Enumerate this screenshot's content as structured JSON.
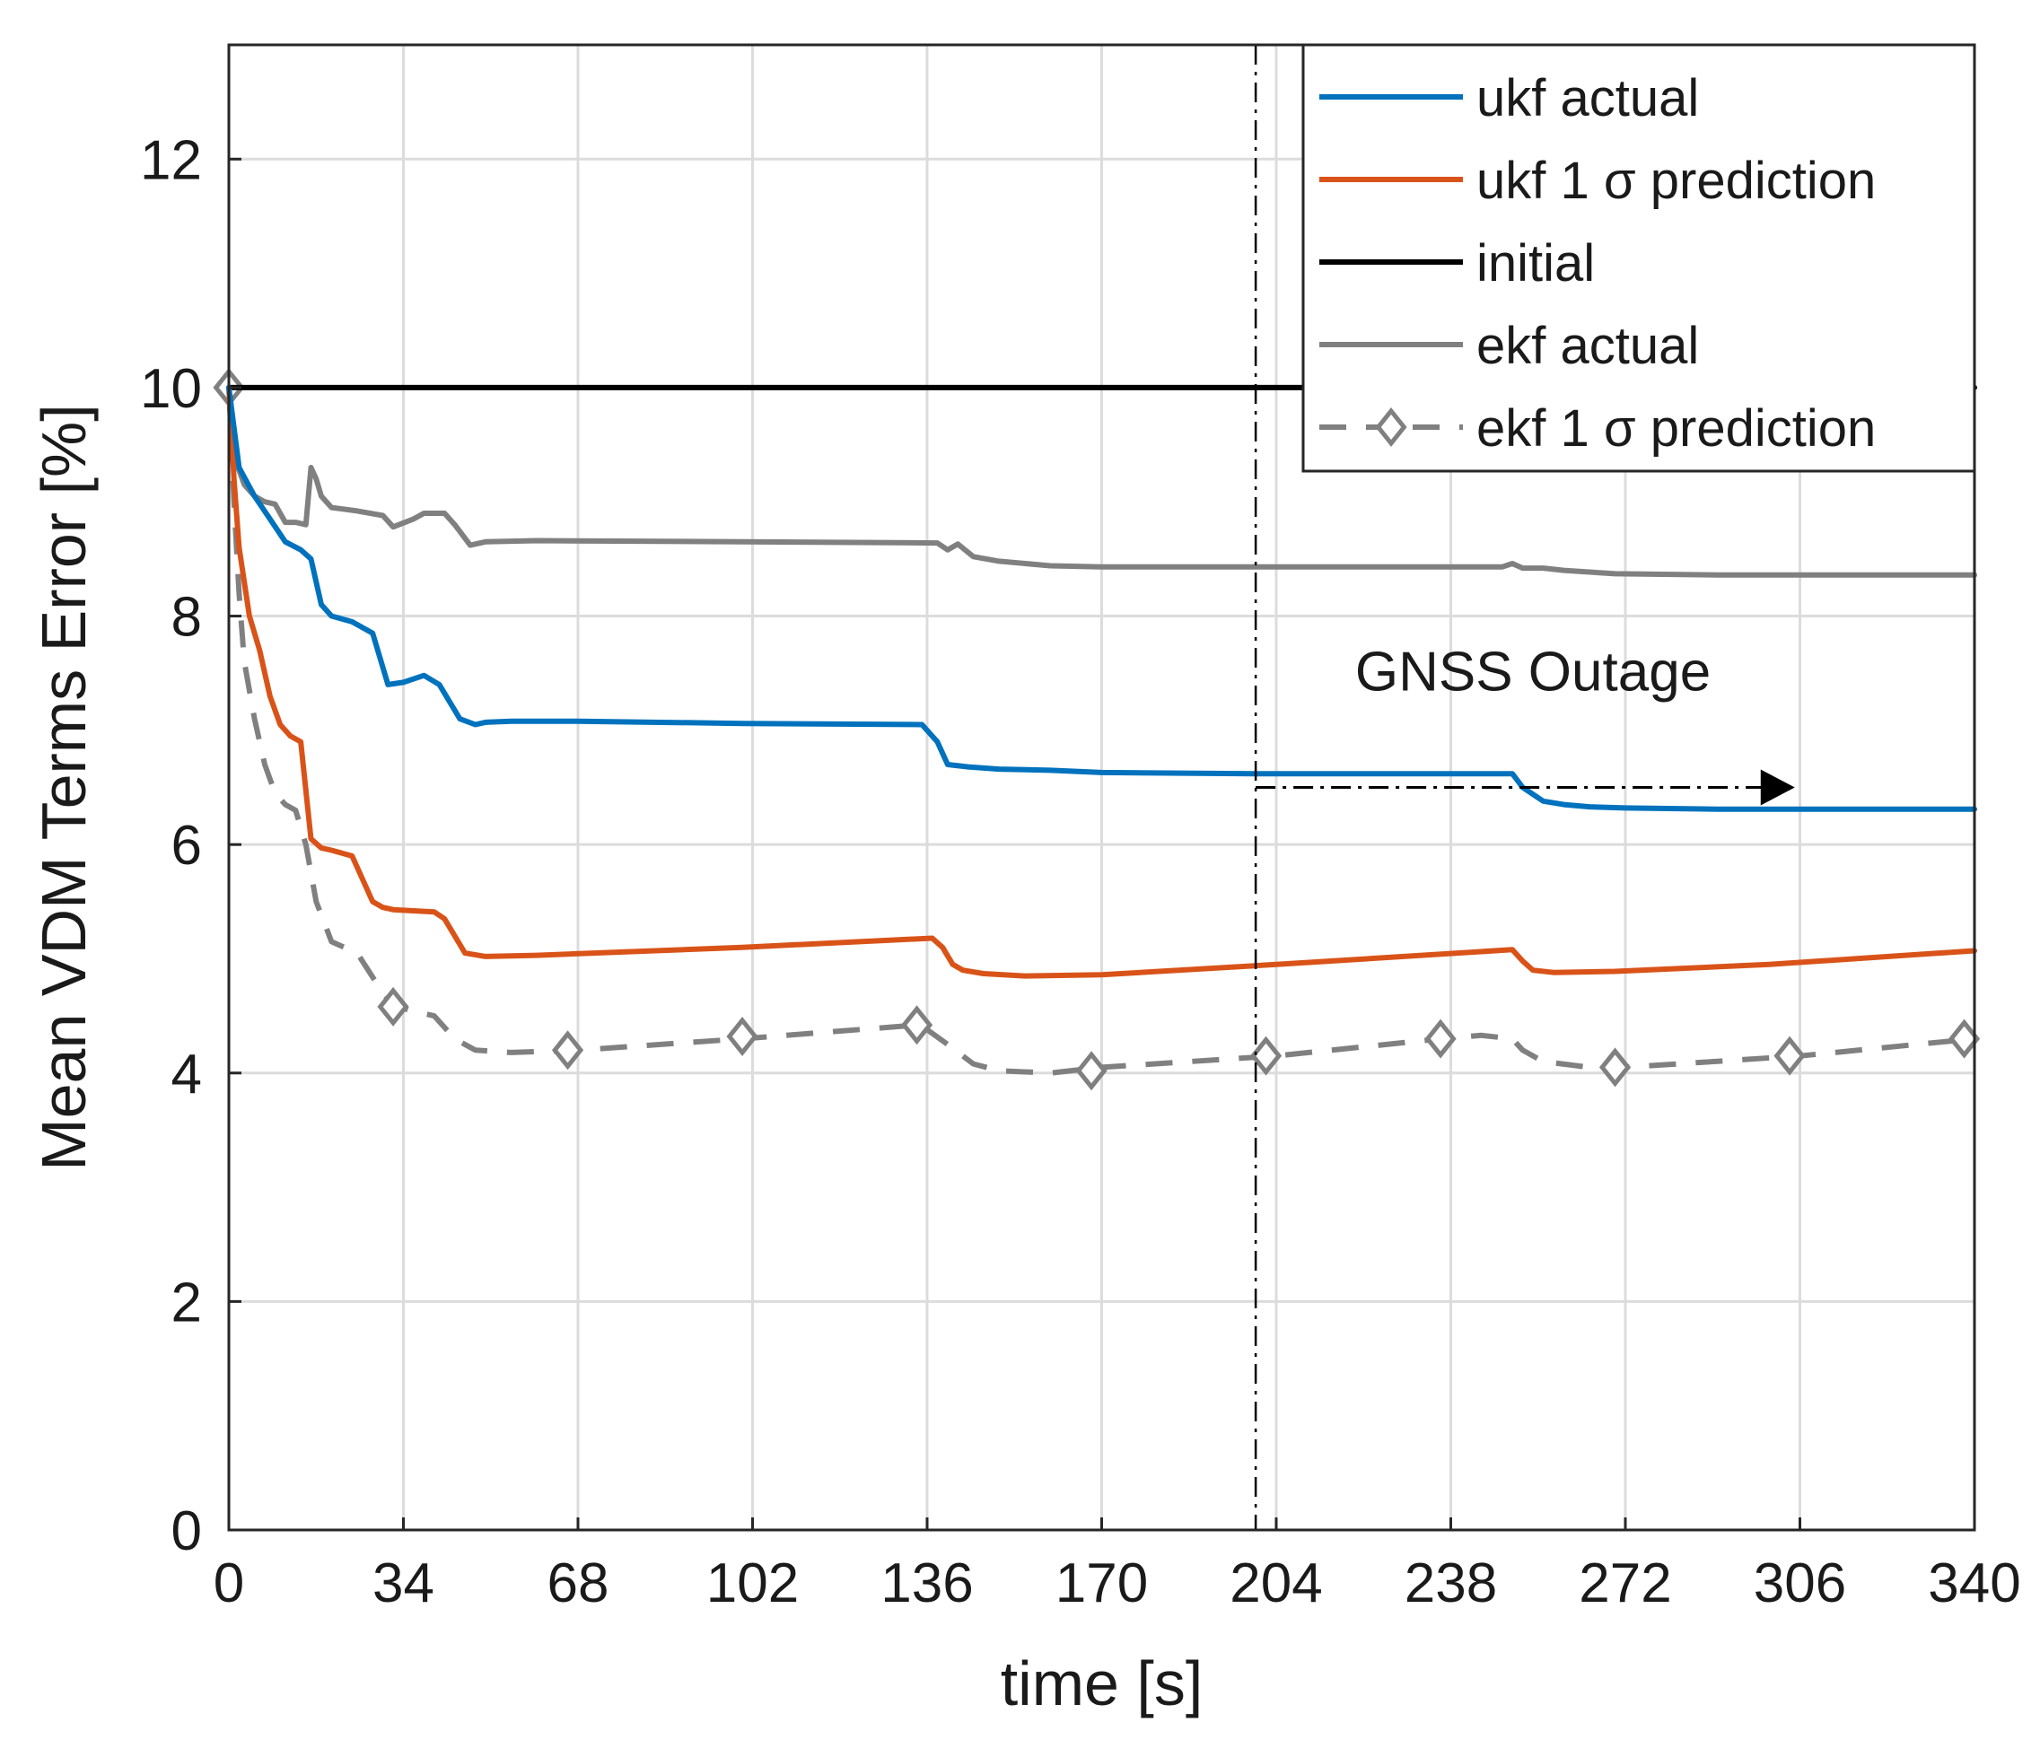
{
  "chart_data": {
    "type": "line",
    "title": "",
    "xlabel": "time [s]",
    "ylabel": "Mean VDM Terms Error [%]",
    "xlim": [
      0,
      340
    ],
    "ylim": [
      0,
      13
    ],
    "grid": true,
    "legend_position": "top-right",
    "x_ticks": [
      0,
      34,
      68,
      102,
      136,
      170,
      204,
      238,
      272,
      306,
      340
    ],
    "x_tick_labels": [
      "0",
      "34",
      "68",
      "102",
      "136",
      "170",
      "204",
      "238",
      "272",
      "306",
      "340"
    ],
    "y_ticks": [
      0,
      2,
      4,
      6,
      8,
      10,
      12
    ],
    "y_tick_labels": [
      "0",
      "2",
      "4",
      "6",
      "8",
      "10",
      "12"
    ],
    "series": [
      {
        "name": "ukf actual",
        "color": "#0072BD",
        "style": "solid",
        "x": [
          0,
          2,
          5,
          8,
          11,
          14,
          16,
          18,
          20,
          24,
          28,
          31,
          34,
          38,
          41,
          45,
          48,
          50,
          55,
          68,
          100,
          135,
          138,
          140,
          144,
          150,
          160,
          170,
          200,
          204,
          230,
          250,
          252,
          256,
          260,
          265,
          272,
          290,
          310,
          340
        ],
        "y": [
          10.0,
          9.3,
          9.05,
          8.85,
          8.65,
          8.58,
          8.5,
          8.1,
          8.0,
          7.95,
          7.85,
          7.4,
          7.42,
          7.48,
          7.4,
          7.1,
          7.05,
          7.07,
          7.08,
          7.08,
          7.06,
          7.05,
          6.9,
          6.7,
          6.68,
          6.66,
          6.65,
          6.63,
          6.62,
          6.62,
          6.62,
          6.62,
          6.5,
          6.38,
          6.35,
          6.33,
          6.32,
          6.31,
          6.31,
          6.31
        ]
      },
      {
        "name": "ukf 1 σ prediction",
        "color": "#D95319",
        "style": "solid",
        "x": [
          0,
          1,
          2,
          4,
          6,
          8,
          10,
          12,
          14,
          16,
          18,
          20,
          24,
          28,
          30,
          32,
          36,
          40,
          42,
          44,
          46,
          50,
          60,
          100,
          137,
          139,
          141,
          143,
          147,
          155,
          170,
          204,
          250,
          252,
          254,
          258,
          270,
          300,
          340
        ],
        "y": [
          10.0,
          9.2,
          8.6,
          8.0,
          7.7,
          7.3,
          7.05,
          6.95,
          6.9,
          6.05,
          5.97,
          5.95,
          5.9,
          5.5,
          5.45,
          5.43,
          5.42,
          5.41,
          5.35,
          5.2,
          5.05,
          5.02,
          5.03,
          5.1,
          5.18,
          5.1,
          4.95,
          4.9,
          4.87,
          4.85,
          4.86,
          4.95,
          5.08,
          4.98,
          4.9,
          4.88,
          4.89,
          4.95,
          5.07
        ]
      },
      {
        "name": "initial",
        "color": "#000000",
        "style": "solid",
        "x": [
          0,
          340
        ],
        "y": [
          10.0,
          10.0
        ]
      },
      {
        "name": "ekf actual",
        "color": "#808080",
        "style": "solid",
        "x": [
          0,
          1,
          3,
          5,
          7,
          9,
          11,
          13,
          15,
          16,
          17,
          18,
          20,
          25,
          30,
          32,
          36,
          38,
          42,
          44,
          47,
          50,
          60,
          100,
          138,
          140,
          142,
          145,
          150,
          160,
          170,
          204,
          240,
          248,
          250,
          252,
          256,
          260,
          270,
          290,
          340
        ],
        "y": [
          10.0,
          9.4,
          9.15,
          9.05,
          9.0,
          8.98,
          8.82,
          8.82,
          8.8,
          9.3,
          9.2,
          9.05,
          8.95,
          8.92,
          8.88,
          8.78,
          8.85,
          8.9,
          8.9,
          8.8,
          8.62,
          8.65,
          8.66,
          8.65,
          8.64,
          8.58,
          8.63,
          8.52,
          8.48,
          8.44,
          8.43,
          8.43,
          8.43,
          8.43,
          8.46,
          8.42,
          8.42,
          8.4,
          8.37,
          8.36,
          8.36
        ]
      },
      {
        "name": "ekf 1 σ prediction",
        "color": "#808080",
        "style": "dashed",
        "marker": "diamond",
        "x": [
          0,
          1,
          2,
          3,
          5,
          7,
          9,
          11,
          13,
          15,
          17,
          20,
          25,
          30,
          32,
          35,
          40,
          44,
          48,
          55,
          68,
          100,
          134,
          136,
          140,
          145,
          150,
          160,
          170,
          204,
          236,
          244,
          250,
          252,
          256,
          265,
          272,
          306,
          340
        ],
        "y": [
          10.0,
          9.0,
          8.2,
          7.6,
          7.1,
          6.7,
          6.45,
          6.35,
          6.3,
          6.0,
          5.5,
          5.15,
          5.05,
          4.7,
          4.6,
          4.55,
          4.5,
          4.3,
          4.2,
          4.18,
          4.2,
          4.3,
          4.42,
          4.38,
          4.25,
          4.08,
          4.02,
          4.0,
          4.05,
          4.15,
          4.3,
          4.33,
          4.3,
          4.2,
          4.1,
          4.05,
          4.05,
          4.15,
          4.3
        ],
        "marker_x": [
          0,
          32,
          66,
          100,
          134,
          168,
          202,
          236,
          270,
          304,
          338
        ],
        "marker_y": [
          10.0,
          4.58,
          4.2,
          4.32,
          4.42,
          4.02,
          4.15,
          4.3,
          4.05,
          4.15,
          4.3
        ]
      }
    ],
    "annotations": [
      {
        "type": "vline",
        "x": 200,
        "style": "dashdot",
        "color": "#000000"
      },
      {
        "type": "text",
        "text": "GNSS Outage",
        "x": 254,
        "y": 7.35
      },
      {
        "type": "arrow",
        "x_start": 200,
        "x_end": 305,
        "y": 6.5,
        "style": "dashdot",
        "color": "#000000"
      }
    ]
  }
}
